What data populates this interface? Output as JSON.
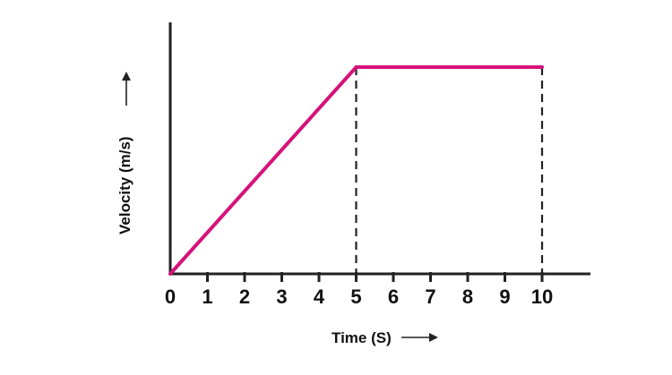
{
  "chart_data": {
    "type": "line",
    "xlabel": "Time (S)",
    "ylabel": "Velocity (m/s)",
    "x_ticks": [
      "0",
      "1",
      "2",
      "3",
      "4",
      "5",
      "6",
      "7",
      "8",
      "9",
      "10"
    ],
    "xlim": [
      0,
      11.3
    ],
    "ylim": [
      0,
      1.35
    ],
    "series": [
      {
        "x": [
          0,
          5,
          10
        ],
        "y": [
          0,
          1,
          1
        ],
        "color": "#d6127a"
      }
    ],
    "reference_lines_x": [
      5,
      10
    ],
    "grid": false,
    "legend": "none"
  }
}
